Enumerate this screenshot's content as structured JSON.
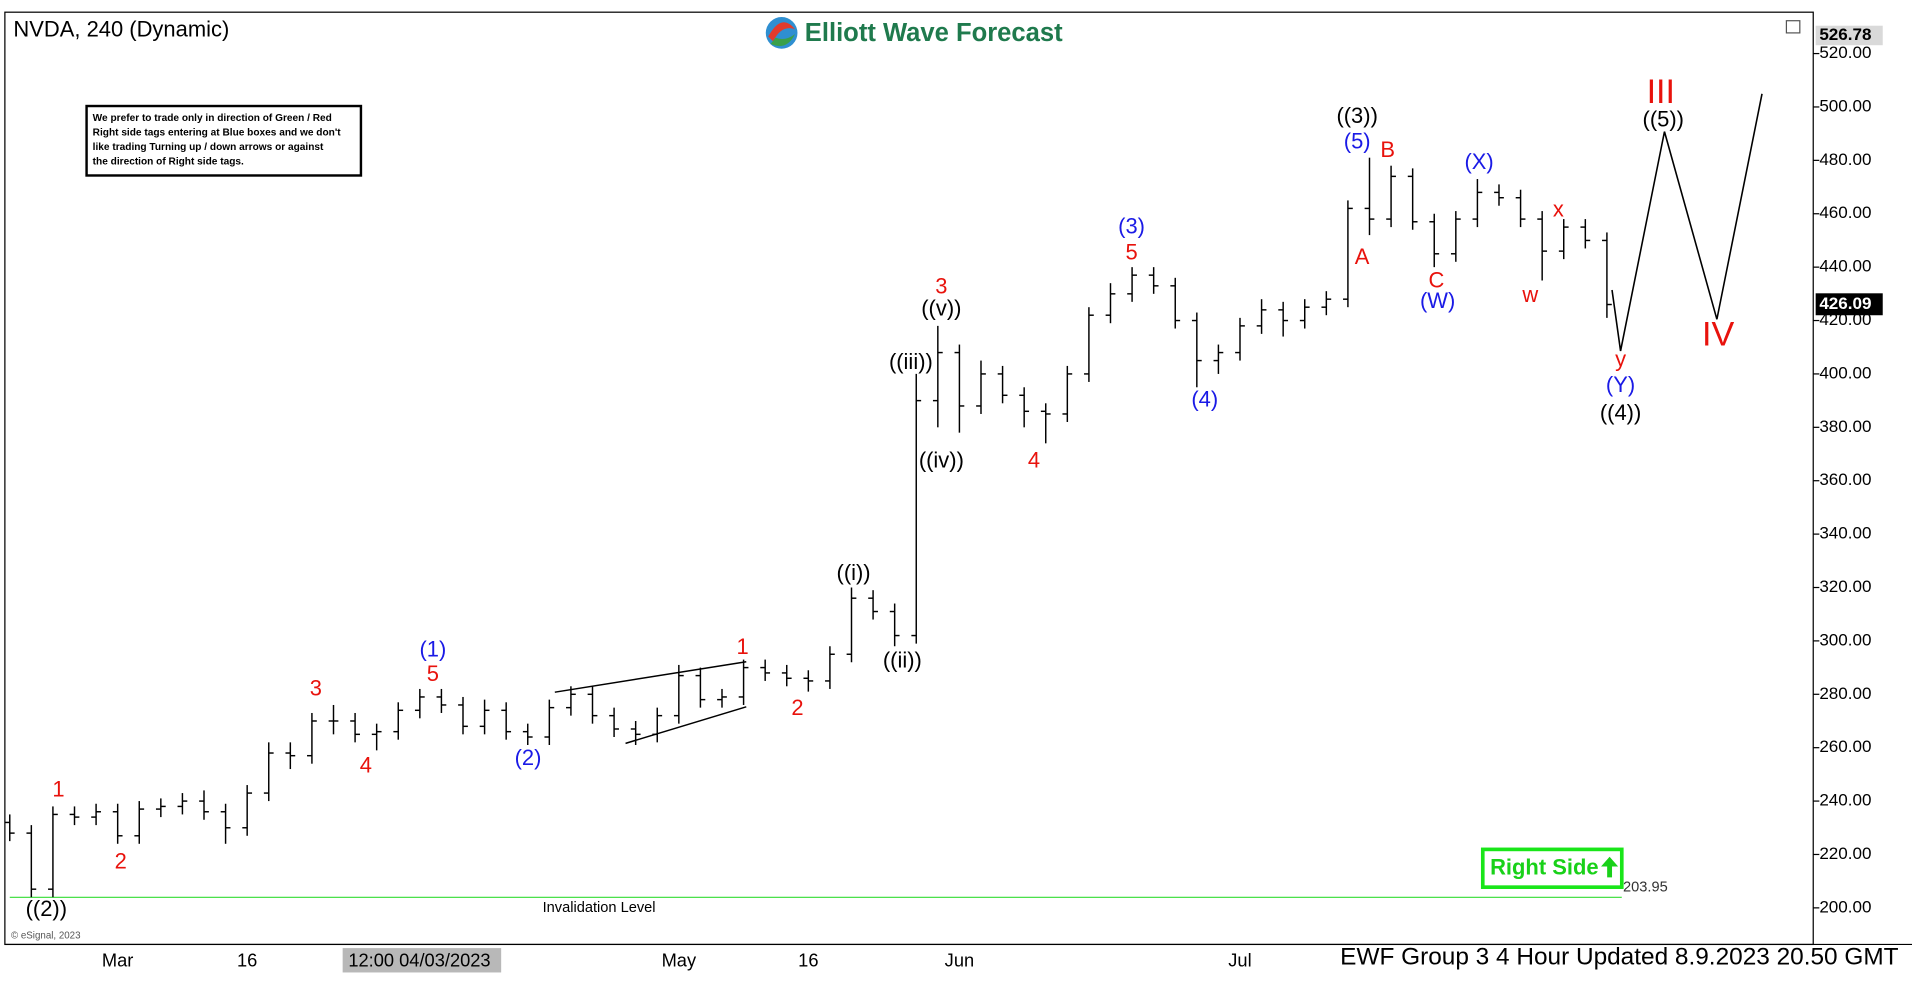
{
  "chart_data": {
    "type": "ohlc",
    "title": "NVDA, 240 (Dynamic)",
    "brand": "Elliott Wave Forecast",
    "note_lines": [
      "We prefer to trade only in direction of Green / Red",
      "Right side tags entering at Blue boxes and we don't",
      "like trading Turning up / down arrows or against",
      "the direction of Right side tags."
    ],
    "footer": "EWF Group 3 4 Hour Updated 8.9.2023 20.50 GMT",
    "copyright": "© eSignal, 2023",
    "crosshair_label": "12:00 04/03/2023",
    "right_side_label": "Right Side",
    "invalidation_label": "Invalidation Level",
    "invalidation_level": 203.95,
    "high_price": 526.78,
    "last_price": 426.09,
    "color": "#000000",
    "categories": [
      null,
      null,
      null,
      null,
      null,
      "Mar",
      null,
      null,
      null,
      null,
      null,
      "16",
      null,
      null,
      null,
      null,
      null,
      null,
      null,
      null,
      null,
      null,
      null,
      null,
      null,
      null,
      null,
      null,
      null,
      null,
      null,
      "May",
      null,
      null,
      null,
      null,
      null,
      "16",
      null,
      null,
      null,
      null,
      null,
      null,
      "Jun",
      null,
      null,
      null,
      null,
      null,
      null,
      null,
      null,
      null,
      null,
      null,
      null,
      "Jul",
      null,
      null,
      null,
      null,
      null,
      null,
      null,
      null,
      null,
      null,
      null,
      null,
      null,
      null,
      null,
      null,
      null
    ],
    "open": [
      232,
      228,
      207,
      235,
      234,
      236,
      227,
      237,
      238,
      240,
      236,
      230,
      243,
      258,
      257,
      270,
      270,
      265,
      266,
      274,
      279,
      276,
      268,
      274,
      266,
      264,
      275,
      280,
      272,
      267,
      265,
      272,
      287,
      278,
      279,
      290,
      288,
      286,
      285,
      295,
      316,
      311,
      302,
      390,
      408,
      388,
      400,
      392,
      386,
      385,
      400,
      422,
      430,
      437,
      433,
      420,
      405,
      408,
      418,
      424,
      420,
      425,
      428,
      462,
      458,
      474,
      457,
      445,
      458,
      468,
      466,
      458,
      446,
      455,
      450
    ],
    "high": [
      235,
      231,
      238,
      238,
      239,
      239,
      240,
      241,
      243,
      244,
      239,
      246,
      262,
      262,
      273,
      276,
      273,
      269,
      277,
      282,
      282,
      279,
      278,
      277,
      269,
      278,
      283,
      283,
      275,
      270,
      275,
      291,
      290,
      282,
      293,
      293,
      291,
      289,
      298,
      320,
      319,
      314,
      400,
      418,
      411,
      405,
      403,
      395,
      389,
      403,
      425,
      434,
      440,
      440,
      436,
      423,
      411,
      421,
      428,
      427,
      428,
      431,
      465,
      481,
      478,
      477,
      460,
      461,
      473,
      471,
      469,
      461,
      458,
      458,
      453
    ],
    "low": [
      225,
      204,
      204,
      231,
      231,
      224,
      224,
      234,
      235,
      233,
      224,
      227,
      240,
      252,
      254,
      265,
      262,
      259,
      263,
      271,
      273,
      265,
      265,
      263,
      261,
      261,
      272,
      269,
      264,
      261,
      262,
      269,
      275,
      275,
      276,
      285,
      283,
      281,
      282,
      292,
      308,
      298,
      299,
      380,
      378,
      385,
      389,
      380,
      374,
      382,
      397,
      419,
      427,
      430,
      417,
      395,
      400,
      405,
      415,
      414,
      417,
      422,
      425,
      452,
      455,
      454,
      440,
      442,
      455,
      463,
      455,
      435,
      443,
      447,
      421
    ],
    "close": [
      228,
      207,
      235,
      234,
      236,
      227,
      237,
      238,
      240,
      236,
      230,
      243,
      258,
      257,
      270,
      270,
      265,
      266,
      274,
      279,
      276,
      268,
      274,
      266,
      264,
      275,
      280,
      272,
      267,
      265,
      272,
      287,
      278,
      279,
      290,
      288,
      286,
      285,
      295,
      316,
      311,
      302,
      390,
      408,
      388,
      400,
      392,
      386,
      385,
      400,
      422,
      430,
      437,
      433,
      420,
      405,
      408,
      418,
      424,
      420,
      425,
      428,
      462,
      458,
      474,
      457,
      445,
      458,
      468,
      466,
      458,
      446,
      455,
      450,
      426
    ],
    "ylim": [
      186.3,
      535.5
    ],
    "yticks": [
      {
        "value": 200,
        "label": "200.00"
      },
      {
        "value": 220,
        "label": "220.00"
      },
      {
        "value": 240,
        "label": "240.00"
      },
      {
        "value": 260,
        "label": "260.00"
      },
      {
        "value": 280,
        "label": "280.00"
      },
      {
        "value": 300,
        "label": "300.00"
      },
      {
        "value": 320,
        "label": "320.00"
      },
      {
        "value": 340,
        "label": "340.00"
      },
      {
        "value": 360,
        "label": "360.00"
      },
      {
        "value": 380,
        "label": "380.00"
      },
      {
        "value": 400,
        "label": "400.00"
      },
      {
        "value": 420,
        "label": "420.00"
      },
      {
        "value": 440,
        "label": "440.00"
      },
      {
        "value": 460,
        "label": "460.00"
      },
      {
        "value": 480,
        "label": "480.00"
      },
      {
        "value": 500,
        "label": "500.00"
      },
      {
        "value": 520,
        "label": "520.00"
      }
    ],
    "annotations": [
      {
        "text": "((2))",
        "color": "#000000"
      },
      {
        "text": "1",
        "color": "#e8120c"
      },
      {
        "text": "2",
        "color": "#e8120c"
      },
      {
        "text": "3",
        "color": "#e8120c"
      },
      {
        "text": "4",
        "color": "#e8120c"
      },
      {
        "text": "(1)",
        "color": "#1a1ae6"
      },
      {
        "text": "5",
        "color": "#e8120c"
      },
      {
        "text": "(2)",
        "color": "#1a1ae6"
      },
      {
        "text": "1",
        "color": "#e8120c"
      },
      {
        "text": "2",
        "color": "#e8120c"
      },
      {
        "text": "((i))",
        "color": "#000000"
      },
      {
        "text": "((ii))",
        "color": "#000000"
      },
      {
        "text": "((iii))",
        "color": "#000000"
      },
      {
        "text": "((iv))",
        "color": "#000000"
      },
      {
        "text": "3",
        "color": "#e8120c"
      },
      {
        "text": "((v))",
        "color": "#000000"
      },
      {
        "text": "4",
        "color": "#e8120c"
      },
      {
        "text": "(3)",
        "color": "#1a1ae6"
      },
      {
        "text": "5",
        "color": "#e8120c"
      },
      {
        "text": "(4)",
        "color": "#1a1ae6"
      },
      {
        "text": "((3))",
        "color": "#000000"
      },
      {
        "text": "(5)",
        "color": "#1a1ae6"
      },
      {
        "text": "A",
        "color": "#e8120c"
      },
      {
        "text": "B",
        "color": "#e8120c"
      },
      {
        "text": "C",
        "color": "#e8120c"
      },
      {
        "text": "(W)",
        "color": "#1a1ae6"
      },
      {
        "text": "(X)",
        "color": "#1a1ae6"
      },
      {
        "text": "w",
        "color": "#e8120c"
      },
      {
        "text": "x",
        "color": "#e8120c"
      },
      {
        "text": "y",
        "color": "#e8120c"
      },
      {
        "text": "(Y)",
        "color": "#1a1ae6"
      },
      {
        "text": "((4))",
        "color": "#000000"
      },
      {
        "text": "III",
        "color": "#e8120c"
      },
      {
        "text": "((5))",
        "color": "#000000"
      },
      {
        "text": "IV",
        "color": "#e8120c"
      }
    ]
  }
}
